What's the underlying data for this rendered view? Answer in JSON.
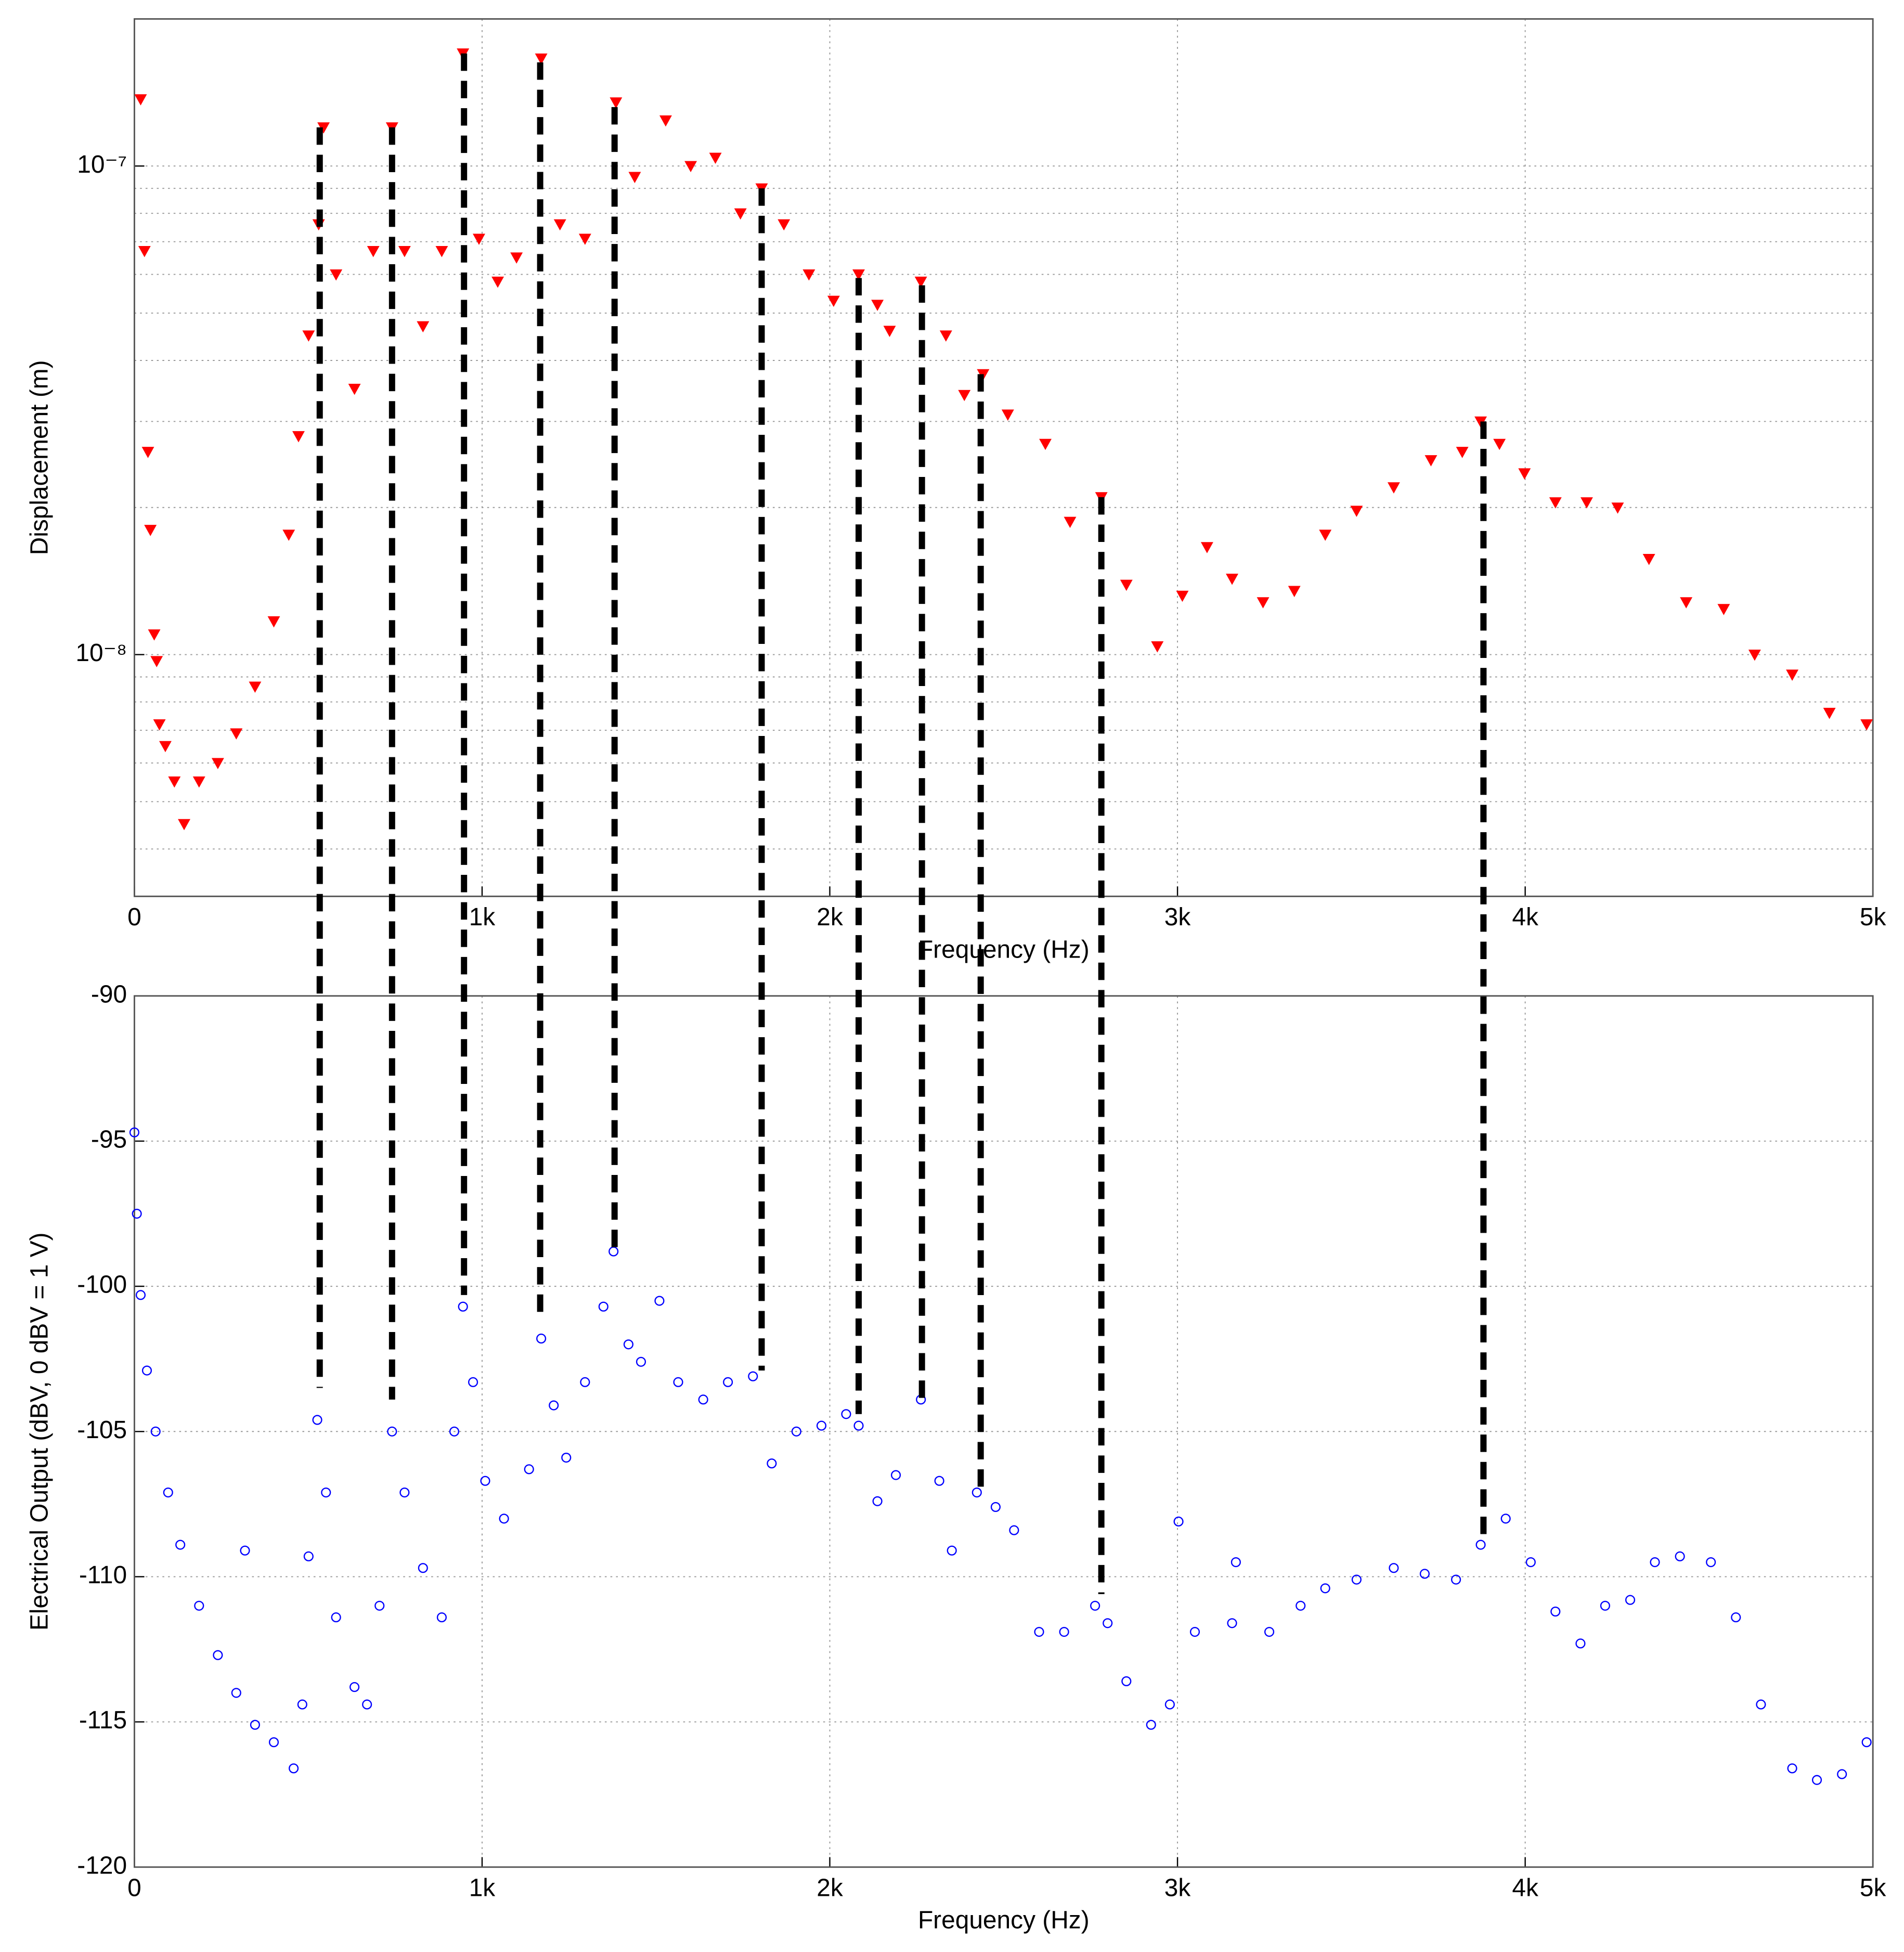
{
  "chart_data": [
    {
      "type": "scatter",
      "xlabel": "Frequency (Hz)",
      "ylabel": "Displacement (m)",
      "color": "#ff0000",
      "marker": "triangle-down",
      "log_scale": true,
      "grid": true,
      "xlim": [
        0,
        5000
      ],
      "xticks": [
        0,
        {
          "value": 1000,
          "label": "1k"
        },
        {
          "value": 2000,
          "label": "2k"
        },
        {
          "value": 3000,
          "label": "3k"
        },
        {
          "value": 4000,
          "label": "4k"
        },
        {
          "value": 5000,
          "label": "5k"
        }
      ],
      "ylim": [
        3.2e-09,
        2e-07
      ],
      "yticks": [
        {
          "value": 1e-08,
          "label": "10⁻⁸"
        },
        {
          "value": 1e-07,
          "label": "10⁻⁷"
        }
      ],
      "x": [
        18,
        29,
        39,
        46,
        57,
        64,
        72,
        89,
        115,
        143,
        186,
        240,
        293,
        347,
        401,
        444,
        472,
        501,
        530,
        544,
        580,
        633,
        687,
        741,
        777,
        830,
        884,
        945,
        991,
        1045,
        1099,
        1170,
        1224,
        1296,
        1385,
        1439,
        1528,
        1600,
        1671,
        1743,
        1804,
        1868,
        1940,
        2011,
        2083,
        2137,
        2172,
        2262,
        2334,
        2387,
        2441,
        2512,
        2620,
        2691,
        2781,
        2853,
        2942,
        3014,
        3085,
        3157,
        3246,
        3336,
        3425,
        3515,
        3622,
        3729,
        3819,
        3872,
        3926,
        3998,
        4087,
        4177,
        4266,
        4356,
        4463,
        4571,
        4660,
        4768,
        4875,
        4982
      ],
      "values": [
        1.37e-07,
        6.7e-08,
        2.6e-08,
        1.8e-08,
        1.1e-08,
        9.7e-09,
        7.2e-09,
        6.5e-09,
        5.5e-09,
        4.5e-09,
        5.5e-09,
        6e-09,
        6.9e-09,
        8.6e-09,
        1.17e-08,
        1.76e-08,
        2.8e-08,
        4.5e-08,
        7.6e-08,
        1.2e-07,
        6e-08,
        3.5e-08,
        6.7e-08,
        1.2e-07,
        6.7e-08,
        4.7e-08,
        6.7e-08,
        1.7e-07,
        7.1e-08,
        5.8e-08,
        6.5e-08,
        1.66e-07,
        7.6e-08,
        7.1e-08,
        1.35e-07,
        9.5e-08,
        1.24e-07,
        1e-07,
        1.04e-07,
        8e-08,
        9e-08,
        7.6e-08,
        6e-08,
        5.3e-08,
        6e-08,
        5.2e-08,
        4.6e-08,
        5.8e-08,
        4.5e-08,
        3.4e-08,
        3.75e-08,
        3.1e-08,
        2.7e-08,
        1.87e-08,
        2.1e-08,
        1.39e-08,
        1.04e-08,
        1.32e-08,
        1.66e-08,
        1.43e-08,
        1.28e-08,
        1.35e-08,
        1.76e-08,
        1.97e-08,
        2.2e-08,
        2.5e-08,
        2.6e-08,
        3e-08,
        2.7e-08,
        2.35e-08,
        2.05e-08,
        2.05e-08,
        2e-08,
        1.57e-08,
        1.28e-08,
        1.24e-08,
        1e-08,
        9.1e-09,
        7.6e-09,
        7.2e-09
      ],
      "peak_lines": {
        "x": [
          533,
          741,
          948,
          1167,
          1381,
          1804,
          2083,
          2265,
          2434,
          2781,
          3880
        ],
        "values": [
          1.2e-07,
          1.2e-07,
          1.7e-07,
          1.63e-07,
          1.32e-07,
          9e-08,
          5.9e-08,
          5.7e-08,
          3.75e-08,
          2.1e-08,
          3e-08
        ]
      }
    },
    {
      "type": "scatter",
      "xlabel": "Frequency (Hz)",
      "ylabel": "Electrical Output (dBV, 0 dBV = 1 V)",
      "color": "#0000ff",
      "marker": "circle",
      "log_scale": false,
      "grid": true,
      "xlim": [
        0,
        5000
      ],
      "xticks": [
        0,
        {
          "value": 1000,
          "label": "1k"
        },
        {
          "value": 2000,
          "label": "2k"
        },
        {
          "value": 3000,
          "label": "3k"
        },
        {
          "value": 4000,
          "label": "4k"
        },
        {
          "value": 5000,
          "label": "5k"
        }
      ],
      "ylim": [
        -120,
        -90
      ],
      "yticks": [
        -120,
        -115,
        -110,
        -105,
        -100,
        -95,
        -90
      ],
      "x": [
        0,
        7,
        18,
        36,
        61,
        97,
        132,
        186,
        240,
        293,
        318,
        347,
        401,
        458,
        483,
        501,
        526,
        551,
        580,
        633,
        669,
        705,
        741,
        777,
        830,
        884,
        920,
        945,
        974,
        1009,
        1063,
        1135,
        1170,
        1206,
        1242,
        1296,
        1349,
        1378,
        1421,
        1457,
        1510,
        1564,
        1636,
        1707,
        1779,
        1833,
        1904,
        1976,
        2047,
        2083,
        2137,
        2190,
        2262,
        2315,
        2351,
        2423,
        2477,
        2530,
        2602,
        2674,
        2763,
        2799,
        2853,
        2924,
        2978,
        3003,
        3050,
        3157,
        3168,
        3264,
        3354,
        3425,
        3515,
        3622,
        3711,
        3801,
        3872,
        3944,
        4016,
        4087,
        4159,
        4230,
        4302,
        4373,
        4445,
        4534,
        4606,
        4678,
        4768,
        4839,
        4911,
        4982
      ],
      "values": [
        -94.7,
        -97.5,
        -100.3,
        -102.9,
        -105.0,
        -107.1,
        -108.9,
        -111.0,
        -112.7,
        -114.0,
        -109.1,
        -115.1,
        -115.7,
        -116.6,
        -114.4,
        -109.3,
        -104.6,
        -107.1,
        -111.4,
        -113.8,
        -114.4,
        -111.0,
        -105.0,
        -107.1,
        -109.7,
        -111.4,
        -105.0,
        -100.7,
        -103.3,
        -106.7,
        -108.0,
        -106.3,
        -101.8,
        -104.1,
        -105.9,
        -103.3,
        -100.7,
        -98.8,
        -102.0,
        -102.6,
        -100.5,
        -103.3,
        -103.9,
        -103.3,
        -103.1,
        -106.1,
        -105.0,
        -104.8,
        -104.4,
        -104.8,
        -107.4,
        -106.5,
        -103.9,
        -106.7,
        -109.1,
        -107.1,
        -107.6,
        -108.4,
        -111.9,
        -111.9,
        -111.0,
        -111.6,
        -113.6,
        -115.1,
        -114.4,
        -108.1,
        -111.9,
        -111.6,
        -109.5,
        -111.9,
        -111.0,
        -110.4,
        -110.1,
        -109.7,
        -109.9,
        -110.1,
        -108.9,
        -108.0,
        -109.5,
        -111.2,
        -112.3,
        -111.0,
        -110.8,
        -109.5,
        -109.3,
        -109.5,
        -111.4,
        -114.4,
        -116.6,
        -117.0,
        -116.8,
        -115.7
      ],
      "peak_lines": {
        "values": [
          -103.5,
          -103.9,
          -100.3,
          -101.1,
          -98.8,
          -102.9,
          -104.4,
          -103.9,
          -106.9,
          -110.6,
          -108.6
        ]
      }
    }
  ]
}
